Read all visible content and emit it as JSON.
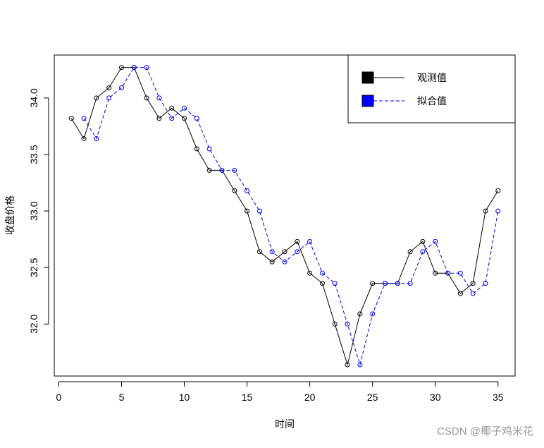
{
  "chart_data": {
    "type": "line",
    "x_label": "时间",
    "y_label": "收盘价格",
    "x": [
      1,
      2,
      3,
      4,
      5,
      6,
      7,
      8,
      9,
      10,
      11,
      12,
      13,
      14,
      15,
      16,
      17,
      18,
      19,
      20,
      21,
      22,
      23,
      24,
      25,
      26,
      27,
      28,
      29,
      30,
      31,
      32,
      33,
      34,
      35
    ],
    "series": [
      {
        "name": "观测值",
        "color": "#000000",
        "dash": false,
        "values": [
          33.82,
          33.64,
          34.0,
          34.09,
          34.27,
          34.27,
          34.0,
          33.82,
          33.91,
          33.82,
          33.55,
          33.36,
          33.36,
          33.18,
          33.0,
          32.64,
          32.55,
          32.64,
          32.73,
          32.45,
          32.36,
          32.0,
          31.64,
          32.09,
          32.36,
          32.36,
          32.36,
          32.64,
          32.73,
          32.45,
          32.45,
          32.27,
          32.36,
          33.0,
          33.18
        ]
      },
      {
        "name": "拟合值",
        "color": "#0000ff",
        "dash": true,
        "values": [
          null,
          33.82,
          33.64,
          34.0,
          34.09,
          34.27,
          34.27,
          34.0,
          33.82,
          33.91,
          33.82,
          33.55,
          33.36,
          33.36,
          33.18,
          33.0,
          32.64,
          32.55,
          32.64,
          32.73,
          32.45,
          32.36,
          32.0,
          31.64,
          32.09,
          32.36,
          32.36,
          32.36,
          32.64,
          32.73,
          32.45,
          32.45,
          32.27,
          32.36,
          33.0
        ]
      }
    ],
    "xlim": [
      -0.36,
      36.36
    ],
    "xticks": [
      0,
      5,
      10,
      15,
      20,
      25,
      30,
      35
    ],
    "ylim": [
      31.54,
      34.38
    ],
    "yticks": [
      {
        "value": 32,
        "label": "32.0"
      },
      32.5,
      {
        "value": 33,
        "label": "33.0"
      },
      33.5,
      {
        "value": 34,
        "label": "34.0"
      }
    ],
    "legend": "top-right",
    "watermark": "CSDN @椰子鸡米花"
  }
}
